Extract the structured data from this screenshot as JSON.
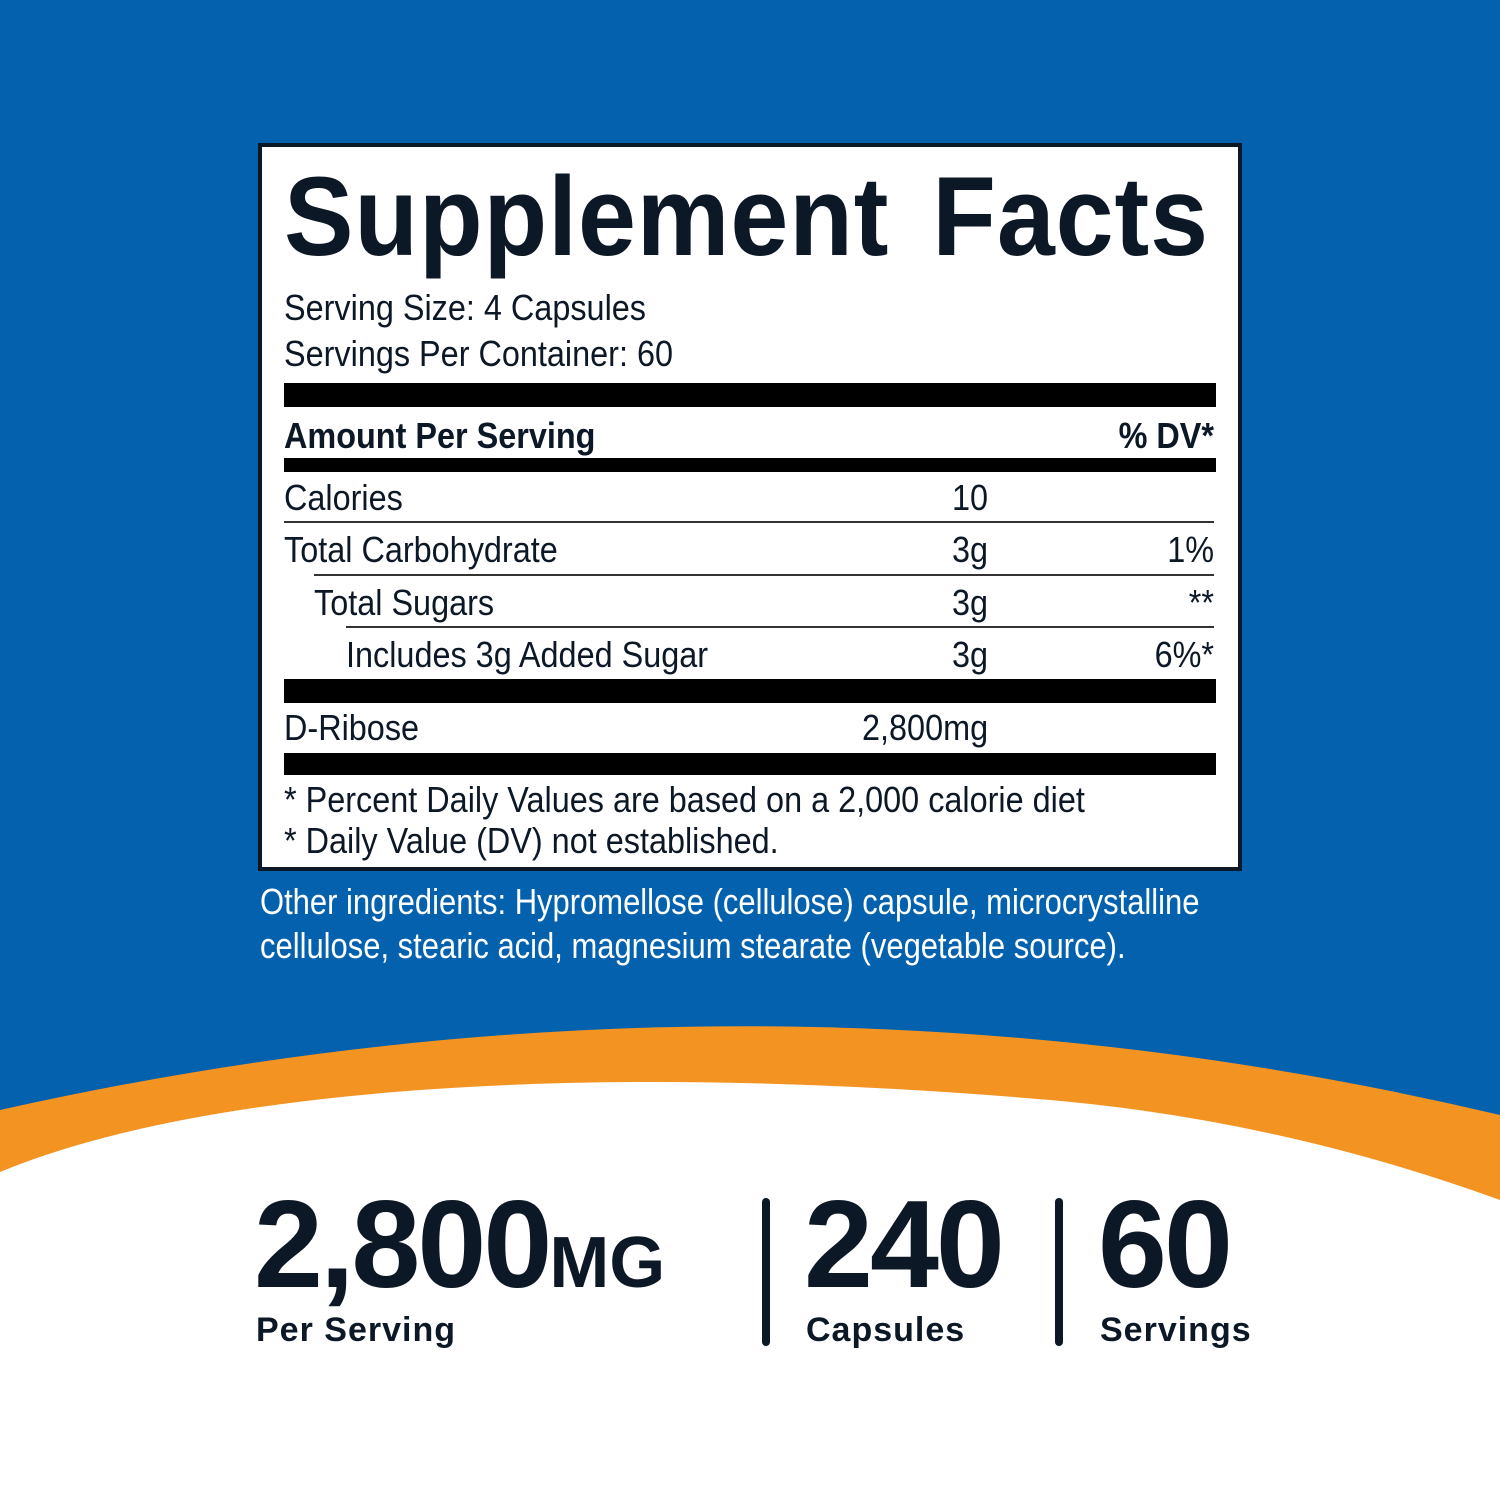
{
  "colors": {
    "background": "#0461ae",
    "accent": "#f39322",
    "text": "#0d1826"
  },
  "facts": {
    "title": "Supplement Facts",
    "serving_size": "Serving Size: 4 Capsules",
    "servings_per_container": "Servings Per Container: 60",
    "header_amount": "Amount Per Serving",
    "header_dv": "% DV*",
    "rows": [
      {
        "name": "Calories",
        "amount": "10",
        "dv": ""
      },
      {
        "name": "Total Carbohydrate",
        "amount": "3g",
        "dv": "1%"
      },
      {
        "name": "Total Sugars",
        "amount": "3g",
        "dv": "**"
      },
      {
        "name": "Includes 3g Added Sugar",
        "amount": "3g",
        "dv": "6%*"
      },
      {
        "name": "D-Ribose",
        "amount": "2,800mg",
        "dv": ""
      }
    ],
    "footnote_1": "* Percent Daily Values are based on a 2,000 calorie diet",
    "footnote_2": "* Daily Value (DV) not established."
  },
  "other_ingredients": [
    "Other ingredients: Hypromellose (cellulose) capsule, microcrystalline",
    "cellulose, stearic acid, magnesium stearate (vegetable source)."
  ],
  "stats": [
    {
      "value": "2,800",
      "unit": "MG",
      "label": "Per Serving"
    },
    {
      "value": "240",
      "unit": "",
      "label": "Capsules"
    },
    {
      "value": "60",
      "unit": "",
      "label": "Servings"
    }
  ]
}
